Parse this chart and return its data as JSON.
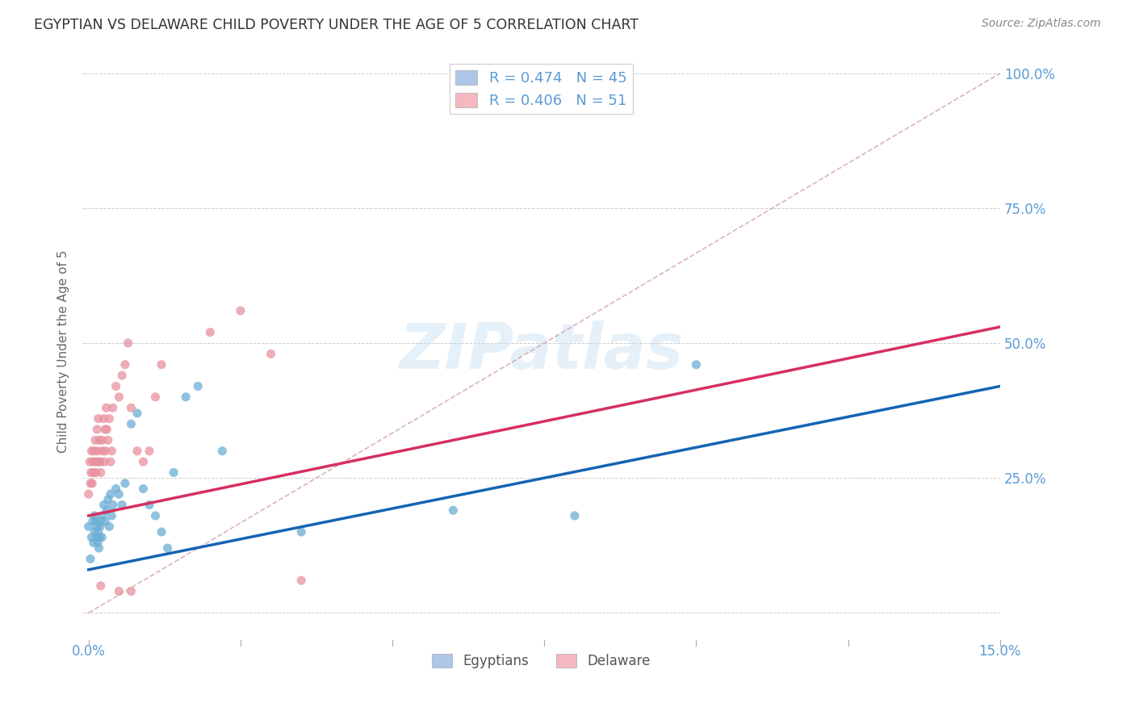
{
  "title": "EGYPTIAN VS DELAWARE CHILD POVERTY UNDER THE AGE OF 5 CORRELATION CHART",
  "source": "Source: ZipAtlas.com",
  "ylabel_label": "Child Poverty Under the Age of 5",
  "watermark": "ZIPatlas",
  "legend_entries": [
    {
      "label": "Egyptians",
      "R": 0.474,
      "N": 45,
      "color": "#aec6e8"
    },
    {
      "label": "Delaware",
      "R": 0.406,
      "N": 51,
      "color": "#f4b8c1"
    }
  ],
  "egyptians_scatter_x": [
    0.0,
    0.0003,
    0.0005,
    0.0007,
    0.0008,
    0.001,
    0.001,
    0.0012,
    0.0013,
    0.0014,
    0.0015,
    0.0016,
    0.0017,
    0.0018,
    0.0019,
    0.002,
    0.0022,
    0.0023,
    0.0025,
    0.0027,
    0.003,
    0.0032,
    0.0034,
    0.0036,
    0.0038,
    0.004,
    0.0045,
    0.005,
    0.0055,
    0.006,
    0.007,
    0.008,
    0.009,
    0.01,
    0.011,
    0.012,
    0.013,
    0.014,
    0.016,
    0.018,
    0.022,
    0.035,
    0.06,
    0.08,
    0.1
  ],
  "egyptians_scatter_y": [
    0.16,
    0.1,
    0.14,
    0.17,
    0.13,
    0.18,
    0.15,
    0.17,
    0.14,
    0.16,
    0.13,
    0.15,
    0.12,
    0.14,
    0.16,
    0.17,
    0.14,
    0.18,
    0.2,
    0.17,
    0.19,
    0.21,
    0.16,
    0.22,
    0.18,
    0.2,
    0.23,
    0.22,
    0.2,
    0.24,
    0.35,
    0.37,
    0.23,
    0.2,
    0.18,
    0.15,
    0.12,
    0.26,
    0.4,
    0.42,
    0.3,
    0.15,
    0.19,
    0.18,
    0.46
  ],
  "delaware_scatter_x": [
    0.0,
    0.0002,
    0.0003,
    0.0004,
    0.0005,
    0.0006,
    0.0007,
    0.0008,
    0.0009,
    0.001,
    0.0011,
    0.0012,
    0.0013,
    0.0014,
    0.0015,
    0.0016,
    0.0017,
    0.0018,
    0.0019,
    0.002,
    0.0022,
    0.0023,
    0.0025,
    0.0026,
    0.0027,
    0.0028,
    0.0029,
    0.003,
    0.0032,
    0.0034,
    0.0036,
    0.0038,
    0.004,
    0.0045,
    0.005,
    0.0055,
    0.006,
    0.0065,
    0.007,
    0.008,
    0.009,
    0.01,
    0.011,
    0.012,
    0.02,
    0.025,
    0.03,
    0.035,
    0.005,
    0.007,
    0.002
  ],
  "delaware_scatter_y": [
    0.22,
    0.28,
    0.24,
    0.26,
    0.3,
    0.24,
    0.28,
    0.26,
    0.3,
    0.28,
    0.32,
    0.26,
    0.28,
    0.34,
    0.3,
    0.36,
    0.28,
    0.32,
    0.28,
    0.26,
    0.32,
    0.3,
    0.36,
    0.28,
    0.34,
    0.3,
    0.38,
    0.34,
    0.32,
    0.36,
    0.28,
    0.3,
    0.38,
    0.42,
    0.4,
    0.44,
    0.46,
    0.5,
    0.38,
    0.3,
    0.28,
    0.3,
    0.4,
    0.46,
    0.52,
    0.56,
    0.48,
    0.06,
    0.04,
    0.04,
    0.05
  ],
  "egyptians_line_x": [
    0.0,
    0.15
  ],
  "egyptians_line_y": [
    0.08,
    0.42
  ],
  "delaware_line_x": [
    0.0,
    0.15
  ],
  "delaware_line_y": [
    0.18,
    0.53
  ],
  "diagonal_line_x": [
    0.0,
    0.15
  ],
  "diagonal_line_y": [
    0.0,
    1.0
  ],
  "xlim": [
    -0.001,
    0.15
  ],
  "ylim": [
    -0.05,
    1.02
  ],
  "x_tick_positions": [
    0.0,
    0.025,
    0.05,
    0.075,
    0.1,
    0.125,
    0.15
  ],
  "y_tick_positions": [
    0.0,
    0.25,
    0.5,
    0.75,
    1.0
  ],
  "egyptians_color": "#6baed6",
  "delaware_color": "#e8909e",
  "egyptians_line_color": "#1464b4",
  "delaware_line_color": "#d63060",
  "diagonal_color": "#d4a0a8",
  "scatter_alpha": 0.75,
  "scatter_size": 65,
  "background_color": "#ffffff",
  "grid_color": "#cccccc",
  "tick_color": "#5b9bd5",
  "ylabel_color": "#666666",
  "title_color": "#333333"
}
